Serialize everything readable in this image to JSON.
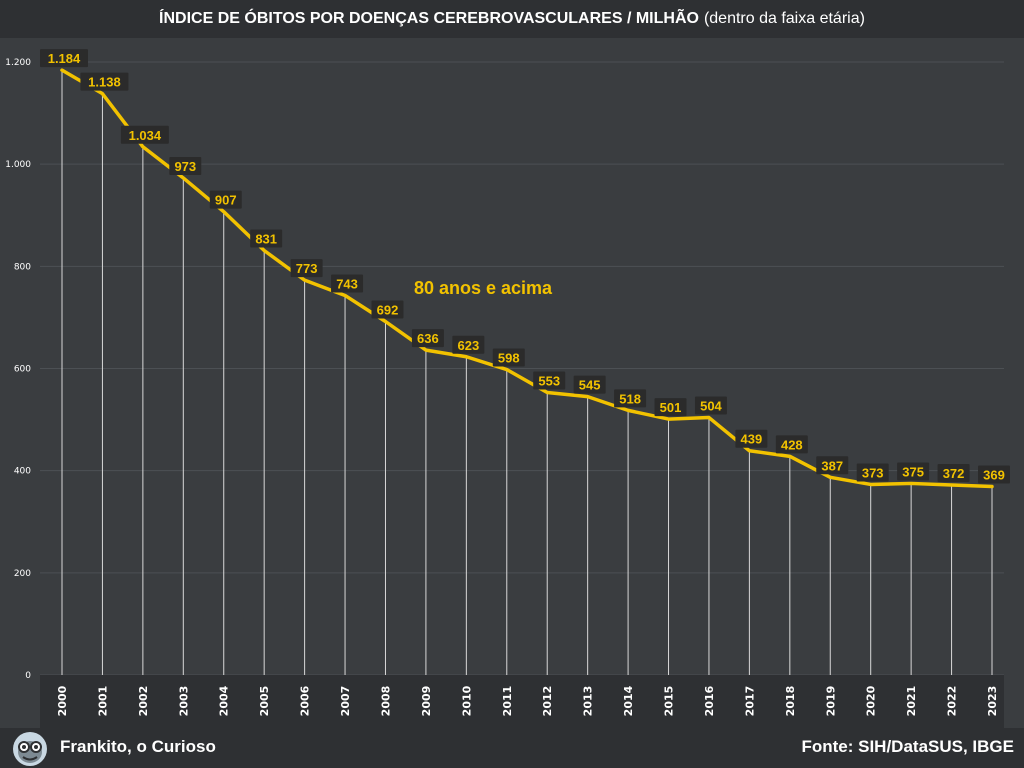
{
  "header": {
    "title": "ÍNDICE DE ÓBITOS POR DOENÇAS CEREBROVASCULARES / MILHÃO",
    "subtitle": "(dentro da faixa etária)"
  },
  "footer": {
    "author": "Frankito, o Curioso",
    "source": "Fonte: SIH/DataSUS, IBGE"
  },
  "colors": {
    "background": "#3a3d40",
    "bar": "#2e3033",
    "line": "#f2c200",
    "label_bg": "#2b2b2b",
    "grid": "#4c5054"
  },
  "chart_data": {
    "type": "line",
    "title": "ÍNDICE DE ÓBITOS POR DOENÇAS CEREBROVASCULARES / MILHÃO (dentro da faixa etária)",
    "annotation": "80 anos e acima",
    "x": [
      "2000",
      "2001",
      "2002",
      "2003",
      "2004",
      "2005",
      "2006",
      "2007",
      "2008",
      "2009",
      "2010",
      "2011",
      "2012",
      "2013",
      "2014",
      "2015",
      "2016",
      "2017",
      "2018",
      "2019",
      "2020",
      "2021",
      "2022",
      "2023"
    ],
    "series": [
      {
        "name": "80 anos e acima",
        "values": [
          1184,
          1138,
          1034,
          973,
          907,
          831,
          773,
          743,
          692,
          636,
          623,
          598,
          553,
          545,
          518,
          501,
          504,
          439,
          428,
          387,
          373,
          375,
          372,
          369
        ],
        "labels": [
          "1.184",
          "1.138",
          "1.034",
          "973",
          "907",
          "831",
          "773",
          "743",
          "692",
          "636",
          "623",
          "598",
          "553",
          "545",
          "518",
          "501",
          "504",
          "439",
          "428",
          "387",
          "373",
          "375",
          "372",
          "369"
        ]
      }
    ],
    "yticks": [
      0,
      200,
      400,
      600,
      800,
      1000,
      1200
    ],
    "ytick_labels": [
      "0",
      "200",
      "400",
      "600",
      "800",
      "1.000",
      "1.200"
    ],
    "ylim": [
      0,
      1200
    ],
    "grid": true,
    "legend": "none"
  }
}
